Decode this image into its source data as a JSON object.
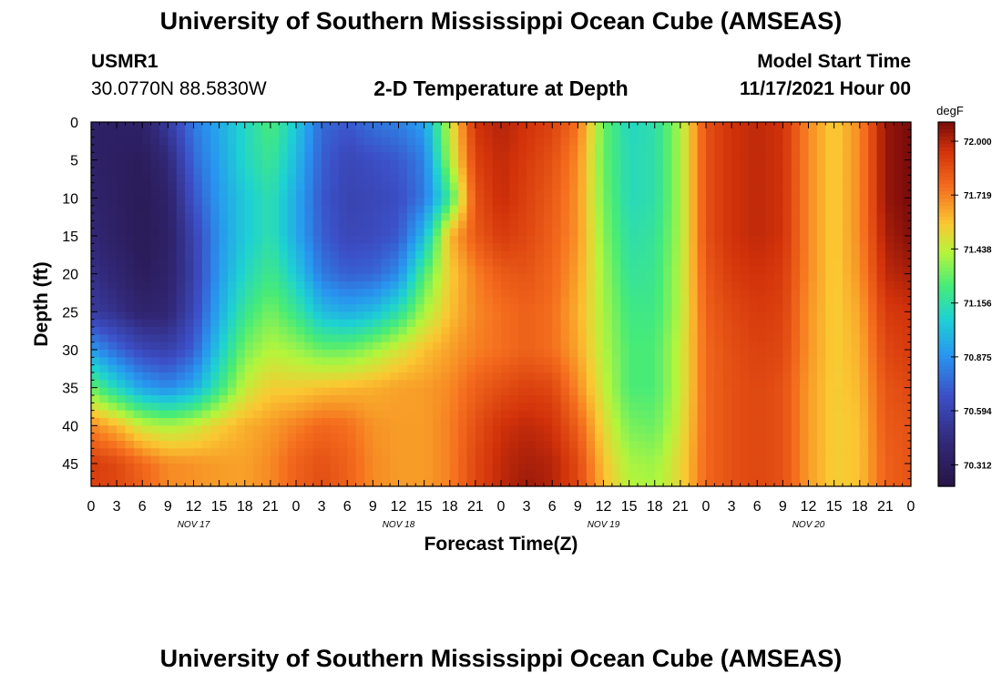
{
  "header": {
    "title": "University of Southern Mississippi Ocean Cube (AMSEAS)",
    "station_id": "USMR1",
    "coords": "30.0770N  88.5830W",
    "subtitle": "2-D Temperature at Depth",
    "model_label": "Model Start Time",
    "model_time": "11/17/2021 Hour 00"
  },
  "footer": {
    "title": "University of Southern Mississippi Ocean Cube (AMSEAS)"
  },
  "chart_data": {
    "type": "heatmap",
    "title": "2-D Temperature at Depth",
    "xlabel": "Forecast Time(Z)",
    "ylabel": "Depth (ft)",
    "x_tick_labels": [
      "0",
      "3",
      "6",
      "9",
      "12",
      "15",
      "18",
      "21",
      "0",
      "3",
      "6",
      "9",
      "12",
      "15",
      "18",
      "21",
      "0",
      "3",
      "6",
      "9",
      "12",
      "15",
      "18",
      "21",
      "0",
      "3",
      "6",
      "9",
      "12",
      "15",
      "18",
      "21",
      "0"
    ],
    "x_range_hours": [
      0,
      96
    ],
    "date_labels": [
      {
        "label": "NOV 17",
        "hour": 12
      },
      {
        "label": "NOV 18",
        "hour": 36
      },
      {
        "label": "NOV 19",
        "hour": 60
      },
      {
        "label": "NOV 20",
        "hour": 84
      }
    ],
    "y_ticks": [
      0,
      5,
      10,
      15,
      20,
      25,
      30,
      35,
      40,
      45
    ],
    "y_range_ft": [
      0,
      48
    ],
    "y_inverted": true,
    "colorbar": {
      "unit": "degF",
      "ticks": [
        "72.000",
        "71.719",
        "71.438",
        "71.156",
        "70.875",
        "70.594",
        "70.312"
      ],
      "range": [
        70.2,
        72.1
      ]
    },
    "x_hours": [
      0,
      3,
      6,
      9,
      12,
      15,
      18,
      21,
      24,
      27,
      30,
      33,
      36,
      39,
      42,
      45,
      48,
      51,
      54,
      57,
      60,
      63,
      66,
      69,
      72,
      75,
      78,
      81,
      84,
      87,
      90,
      93,
      96
    ],
    "depths_ft": [
      0,
      5,
      10,
      15,
      20,
      25,
      30,
      35,
      40,
      45,
      48
    ],
    "values_degF": [
      [
        70.35,
        70.34,
        70.36,
        70.55,
        70.8,
        70.95,
        71.1,
        71.25,
        71.05,
        70.75,
        70.7,
        70.78,
        70.82,
        70.92,
        71.45,
        71.95,
        72.0,
        71.95,
        71.9,
        71.75,
        71.3,
        71.1,
        71.15,
        71.4,
        71.85,
        71.95,
        71.98,
        71.95,
        71.7,
        71.55,
        71.7,
        72.05,
        72.1
      ],
      [
        70.35,
        70.32,
        70.3,
        70.42,
        70.75,
        70.92,
        71.1,
        71.2,
        71.0,
        70.72,
        70.62,
        70.66,
        70.7,
        70.82,
        71.4,
        71.9,
        71.98,
        71.92,
        71.85,
        71.7,
        71.3,
        71.12,
        71.15,
        71.4,
        71.85,
        71.95,
        71.98,
        71.95,
        71.7,
        71.55,
        71.7,
        72.05,
        72.1
      ],
      [
        70.38,
        70.33,
        70.28,
        70.36,
        70.68,
        70.9,
        71.05,
        71.15,
        70.95,
        70.7,
        70.6,
        70.62,
        70.66,
        70.8,
        71.2,
        71.85,
        71.97,
        71.9,
        71.82,
        71.68,
        71.32,
        71.12,
        71.15,
        71.4,
        71.85,
        71.95,
        71.98,
        71.95,
        71.7,
        71.55,
        71.7,
        72.05,
        72.1
      ],
      [
        70.42,
        70.34,
        70.28,
        70.34,
        70.6,
        70.88,
        71.05,
        71.15,
        70.95,
        70.72,
        70.62,
        70.64,
        70.7,
        71.0,
        71.6,
        71.82,
        71.92,
        71.88,
        71.8,
        71.68,
        71.35,
        71.15,
        71.18,
        71.4,
        71.85,
        71.95,
        71.98,
        71.95,
        71.7,
        71.55,
        71.7,
        72.02,
        72.08
      ],
      [
        70.48,
        70.4,
        70.3,
        70.36,
        70.58,
        70.9,
        71.1,
        71.22,
        71.05,
        70.8,
        70.72,
        70.74,
        70.85,
        71.25,
        71.55,
        71.72,
        71.82,
        71.84,
        71.78,
        71.65,
        71.38,
        71.18,
        71.2,
        71.42,
        71.82,
        71.92,
        71.95,
        71.92,
        71.7,
        71.55,
        71.68,
        71.98,
        72.02
      ],
      [
        70.55,
        70.48,
        70.38,
        70.4,
        70.62,
        70.95,
        71.2,
        71.32,
        71.2,
        71.0,
        70.95,
        71.0,
        71.15,
        71.4,
        71.58,
        71.7,
        71.76,
        71.8,
        71.76,
        71.62,
        71.4,
        71.22,
        71.22,
        71.42,
        71.8,
        71.88,
        71.92,
        71.9,
        71.68,
        71.55,
        71.64,
        71.92,
        71.95
      ],
      [
        70.9,
        70.75,
        70.62,
        70.58,
        70.72,
        71.05,
        71.32,
        71.42,
        71.38,
        71.3,
        71.3,
        71.38,
        71.48,
        71.58,
        71.65,
        71.72,
        71.76,
        71.8,
        71.76,
        71.64,
        71.42,
        71.25,
        71.25,
        71.45,
        71.78,
        71.86,
        71.9,
        71.88,
        71.68,
        71.55,
        71.62,
        71.88,
        71.92
      ],
      [
        71.3,
        71.1,
        70.92,
        70.85,
        70.95,
        71.2,
        71.45,
        71.55,
        71.55,
        71.58,
        71.6,
        71.62,
        71.65,
        71.66,
        71.7,
        71.8,
        71.86,
        71.9,
        71.88,
        71.7,
        71.45,
        71.25,
        71.25,
        71.45,
        71.78,
        71.85,
        71.88,
        71.85,
        71.66,
        71.55,
        71.6,
        71.84,
        71.88
      ],
      [
        71.7,
        71.6,
        71.45,
        71.4,
        71.45,
        71.55,
        71.62,
        71.66,
        71.72,
        71.78,
        71.76,
        71.68,
        71.66,
        71.66,
        71.72,
        71.85,
        71.95,
        71.98,
        71.95,
        71.8,
        71.52,
        71.32,
        71.3,
        71.48,
        71.78,
        71.85,
        71.88,
        71.85,
        71.66,
        71.55,
        71.58,
        71.82,
        71.85
      ],
      [
        71.92,
        71.88,
        71.78,
        71.7,
        71.68,
        71.66,
        71.65,
        71.7,
        71.8,
        71.85,
        71.8,
        71.7,
        71.66,
        71.66,
        71.72,
        71.88,
        71.98,
        72.02,
        72.0,
        71.88,
        71.58,
        71.4,
        71.38,
        71.52,
        71.78,
        71.85,
        71.88,
        71.85,
        71.66,
        71.55,
        71.58,
        71.8,
        71.84
      ],
      [
        71.9,
        71.88,
        71.8,
        71.7,
        71.68,
        71.66,
        71.65,
        71.7,
        71.8,
        71.86,
        71.8,
        71.7,
        71.66,
        71.66,
        71.72,
        71.88,
        71.98,
        72.04,
        72.0,
        71.88,
        71.6,
        71.42,
        71.4,
        71.52,
        71.78,
        71.85,
        71.88,
        71.85,
        71.66,
        71.55,
        71.58,
        71.8,
        71.84
      ]
    ]
  }
}
